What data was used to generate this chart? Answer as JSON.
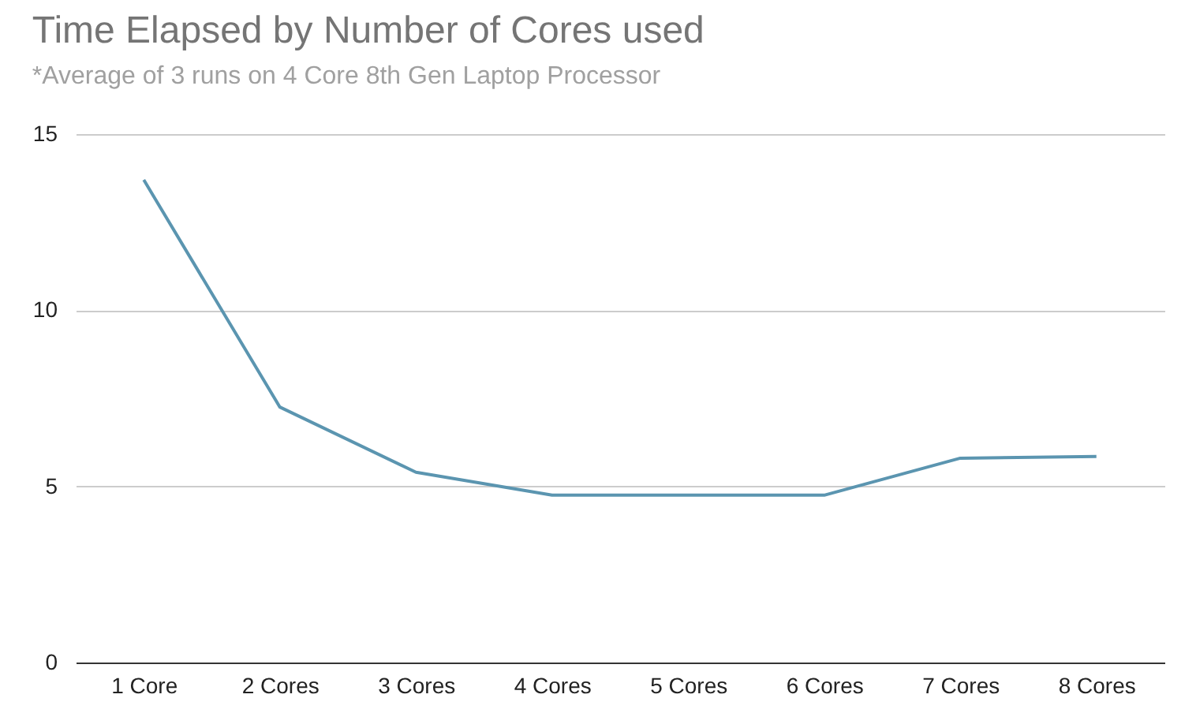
{
  "chart_data": {
    "type": "line",
    "title": "Time Elapsed by Number of Cores used",
    "subtitle": "*Average of 3 runs on 4 Core 8th Gen Laptop Processor",
    "categories": [
      "1 Core",
      "2 Cores",
      "3 Cores",
      "4 Cores",
      "5 Cores",
      "6 Cores",
      "7 Cores",
      "8 Cores"
    ],
    "series": [
      {
        "color": "#5b95b0",
        "values": [
          13.7,
          7.25,
          5.4,
          4.75,
          4.75,
          4.75,
          5.8,
          5.85
        ]
      }
    ],
    "ylim": [
      0,
      15
    ],
    "yticks": [
      0,
      5,
      10,
      15
    ],
    "grid": "y",
    "marker": "none",
    "line_style": "solid"
  }
}
